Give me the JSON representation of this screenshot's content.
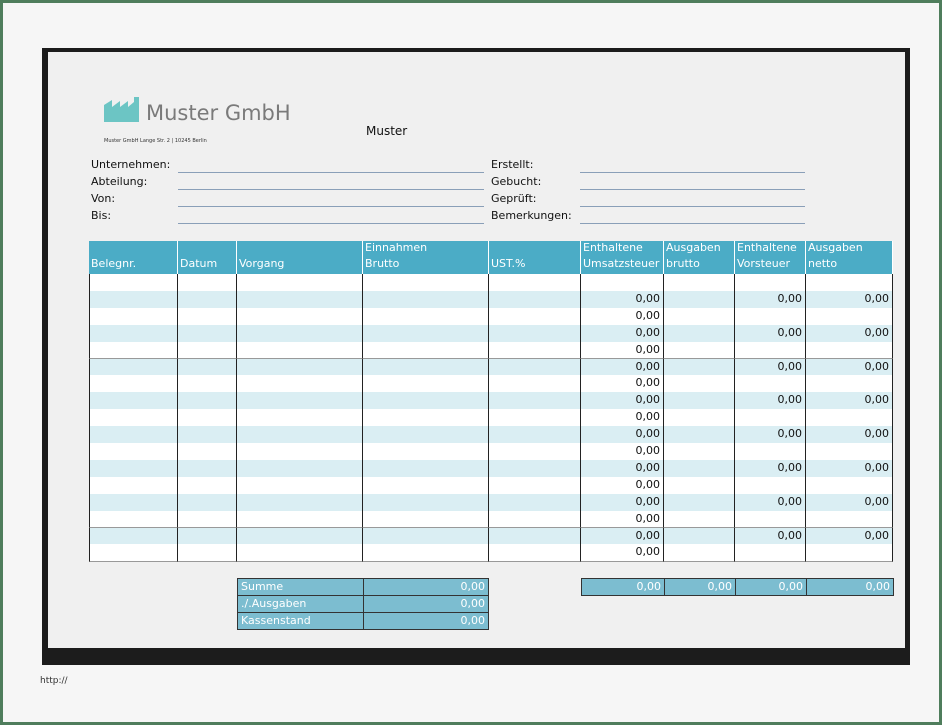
{
  "header": {
    "company": "Muster GmbH",
    "address": "Muster GmbH Lange Str. 2 | 10245 Berlin",
    "title": "Muster"
  },
  "fields": {
    "left": [
      "Unternehmen:",
      "Abteilung:",
      "Von:",
      "Bis:"
    ],
    "right": [
      "Erstellt:",
      "Gebucht:",
      "Geprüft:",
      "Bemerkungen:"
    ]
  },
  "table": {
    "headers": [
      [
        "Belegnr."
      ],
      [
        "Datum"
      ],
      [
        "Vorgang"
      ],
      [
        "Einnahmen",
        "Brutto"
      ],
      [
        "UST.%"
      ],
      [
        "Enthaltene",
        "Umsatzsteuer"
      ],
      [
        "Ausgaben",
        "brutto"
      ],
      [
        "Enthaltene",
        "Vorsteuer"
      ],
      [
        "Ausgaben",
        "netto"
      ]
    ],
    "rows": [
      [
        null,
        null,
        null,
        null,
        null,
        null,
        null,
        null,
        null
      ],
      [
        null,
        null,
        null,
        null,
        null,
        "0,00",
        null,
        "0,00",
        "0,00"
      ],
      [
        null,
        null,
        null,
        null,
        null,
        "0,00",
        null,
        null,
        null
      ],
      [
        null,
        null,
        null,
        null,
        null,
        "0,00",
        null,
        "0,00",
        "0,00"
      ],
      [
        null,
        null,
        null,
        null,
        null,
        "0,00",
        null,
        null,
        null
      ],
      [
        null,
        null,
        null,
        null,
        null,
        "0,00",
        null,
        "0,00",
        "0,00"
      ],
      [
        null,
        null,
        null,
        null,
        null,
        "0,00",
        null,
        null,
        null
      ],
      [
        null,
        null,
        null,
        null,
        null,
        "0,00",
        null,
        "0,00",
        "0,00"
      ],
      [
        null,
        null,
        null,
        null,
        null,
        "0,00",
        null,
        null,
        null
      ],
      [
        null,
        null,
        null,
        null,
        null,
        "0,00",
        null,
        "0,00",
        "0,00"
      ],
      [
        null,
        null,
        null,
        null,
        null,
        "0,00",
        null,
        null,
        null
      ],
      [
        null,
        null,
        null,
        null,
        null,
        "0,00",
        null,
        "0,00",
        "0,00"
      ],
      [
        null,
        null,
        null,
        null,
        null,
        "0,00",
        null,
        null,
        null
      ],
      [
        null,
        null,
        null,
        null,
        null,
        "0,00",
        null,
        "0,00",
        "0,00"
      ],
      [
        null,
        null,
        null,
        null,
        null,
        "0,00",
        null,
        null,
        null
      ],
      [
        null,
        null,
        null,
        null,
        null,
        "0,00",
        null,
        "0,00",
        "0,00"
      ],
      [
        null,
        null,
        null,
        null,
        null,
        "0,00",
        null,
        null,
        null
      ]
    ]
  },
  "summary": {
    "left": [
      [
        "Summe",
        "0,00"
      ],
      [
        "./.Ausgaben",
        "0,00"
      ],
      [
        "Kassenstand",
        "0,00"
      ]
    ],
    "right": [
      "0,00",
      "0,00",
      "0,00",
      "0,00"
    ]
  },
  "footer": "http://"
}
